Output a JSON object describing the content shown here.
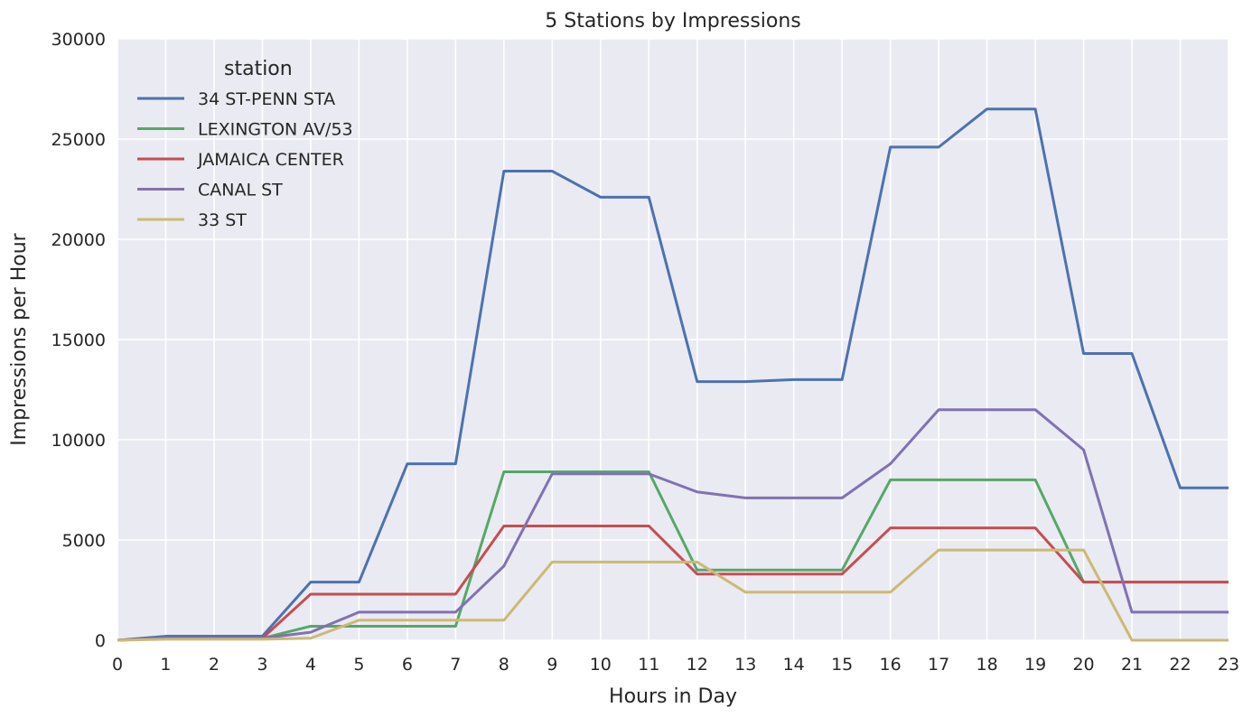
{
  "chart_data": {
    "type": "line",
    "title": "5 Stations by Impressions",
    "xlabel": "Hours in Day",
    "ylabel": "Impressions per Hour",
    "xlim": [
      0,
      23
    ],
    "ylim": [
      0,
      30000
    ],
    "x": [
      0,
      1,
      2,
      3,
      4,
      5,
      6,
      7,
      8,
      9,
      10,
      11,
      12,
      13,
      14,
      15,
      16,
      17,
      18,
      19,
      20,
      21,
      22,
      23
    ],
    "yticks": [
      0,
      5000,
      10000,
      15000,
      20000,
      25000,
      30000
    ],
    "grid": true,
    "legend": {
      "title": "station",
      "placement": "top-left"
    },
    "series": [
      {
        "name": "34 ST-PENN STA",
        "color": "#4c72b0",
        "values": [
          0,
          200,
          200,
          200,
          2900,
          2900,
          8800,
          8800,
          23400,
          23400,
          22100,
          22100,
          12900,
          12900,
          13000,
          13000,
          24600,
          24600,
          26500,
          26500,
          14300,
          14300,
          7600,
          7600
        ]
      },
      {
        "name": "LEXINGTON AV/53",
        "color": "#55a868",
        "values": [
          0,
          100,
          100,
          100,
          700,
          700,
          700,
          700,
          8400,
          8400,
          8400,
          8400,
          3500,
          3500,
          3500,
          3500,
          8000,
          8000,
          8000,
          8000,
          2900,
          2900,
          2900,
          2900
        ]
      },
      {
        "name": "JAMAICA CENTER",
        "color": "#c44e52",
        "values": [
          0,
          100,
          100,
          100,
          2300,
          2300,
          2300,
          2300,
          5700,
          5700,
          5700,
          5700,
          3300,
          3300,
          3300,
          3300,
          5600,
          5600,
          5600,
          5600,
          2900,
          2900,
          2900,
          2900
        ]
      },
      {
        "name": "CANAL ST",
        "color": "#8172b2",
        "values": [
          0,
          100,
          100,
          100,
          400,
          1400,
          1400,
          1400,
          3700,
          8300,
          8300,
          8300,
          7400,
          7100,
          7100,
          7100,
          8800,
          11500,
          11500,
          11500,
          9500,
          1400,
          1400,
          1400
        ]
      },
      {
        "name": "33 ST",
        "color": "#ccb974",
        "values": [
          0,
          50,
          50,
          50,
          100,
          1000,
          1000,
          1000,
          1000,
          3900,
          3900,
          3900,
          3900,
          2400,
          2400,
          2400,
          2400,
          4500,
          4500,
          4500,
          4500,
          0,
          0,
          0
        ]
      }
    ]
  }
}
